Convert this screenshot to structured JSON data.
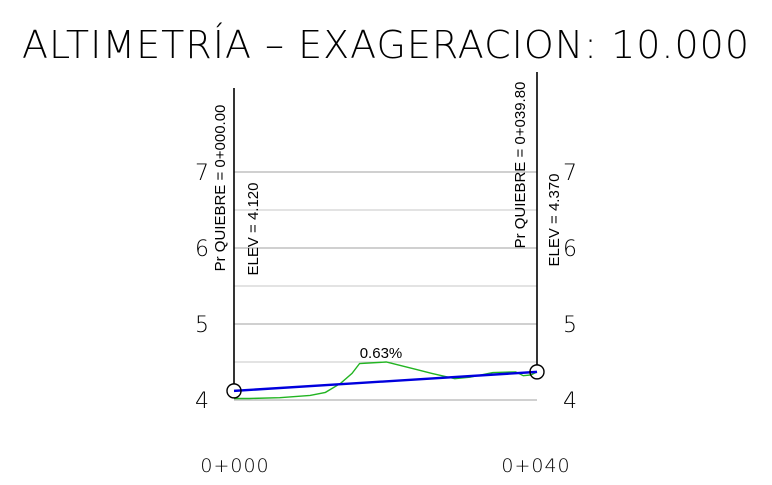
{
  "title": "ALTIMETRÍA  –  EXAGERACION: 10.000",
  "chart_data": {
    "type": "line",
    "ylim": [
      4,
      7.5
    ],
    "y_ticks": [
      "4",
      "5",
      "6",
      "7"
    ],
    "x_stations": [
      "0+000",
      "0+040"
    ],
    "grade_label": "0.63%",
    "break_points": [
      {
        "station_label": "Pr QUIEBRE = 0+000.00",
        "elev_label": "ELEV = 4.120",
        "x": 0,
        "y": 4.12
      },
      {
        "station_label": "Pr QUIEBRE = 0+039.80",
        "elev_label": "ELEV = 4.370",
        "x": 39.8,
        "y": 4.37
      }
    ],
    "series": [
      {
        "values": [
          [
            0,
            4.02
          ],
          [
            2,
            4.02
          ],
          [
            6,
            4.03
          ],
          [
            10,
            4.06
          ],
          [
            12,
            4.1
          ],
          [
            14,
            4.22
          ],
          [
            15.5,
            4.35
          ],
          [
            16.5,
            4.48
          ],
          [
            20,
            4.5
          ],
          [
            24,
            4.4
          ],
          [
            26,
            4.35
          ],
          [
            29,
            4.28
          ],
          [
            31,
            4.3
          ],
          [
            34,
            4.36
          ],
          [
            37,
            4.37
          ],
          [
            38,
            4.32
          ],
          [
            39,
            4.33
          ],
          [
            39.8,
            4.37
          ]
        ]
      },
      {
        "values": [
          [
            0,
            4.12
          ],
          [
            39.8,
            4.37
          ]
        ]
      }
    ],
    "colors": {
      "terrain": "#22b422",
      "grade": "#0000dd",
      "grid": "#b4b4b4",
      "axis": "#000000"
    }
  }
}
